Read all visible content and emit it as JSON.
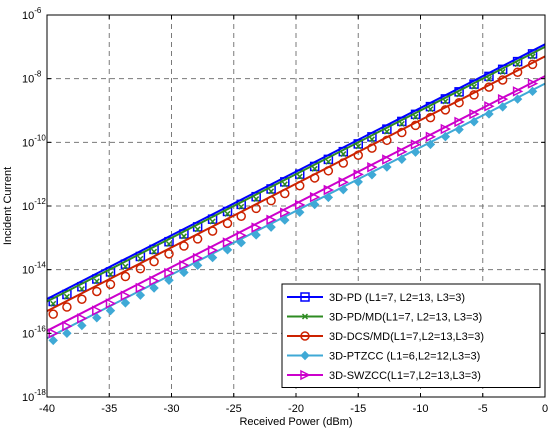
{
  "chart_data": {
    "type": "line",
    "xlabel": "Received Power (dBm)",
    "ylabel": "Incident Current",
    "x_scale": "linear",
    "y_scale": "log",
    "xlim": [
      -40,
      0
    ],
    "ylim": [
      1e-18,
      1e-06
    ],
    "grid": true,
    "legend_position": "bottom-right",
    "x_ticks": [
      -40,
      -35,
      -30,
      -25,
      -20,
      -15,
      -10,
      -5,
      0
    ],
    "x_tick_labels": [
      "-40",
      "-35",
      "-30",
      "-25",
      "-20",
      "-15",
      "-10",
      "-5",
      "0"
    ],
    "y_ticks": [
      1e-18,
      1e-16,
      1e-14,
      1e-12,
      1e-10,
      1e-08,
      1e-06
    ],
    "y_tick_labels": [
      {
        "base": "10",
        "exp": "-18"
      },
      {
        "base": "10",
        "exp": "-16"
      },
      {
        "base": "10",
        "exp": "-14"
      },
      {
        "base": "10",
        "exp": "-12"
      },
      {
        "base": "10",
        "exp": "-10"
      },
      {
        "base": "10",
        "exp": "-8"
      },
      {
        "base": "10",
        "exp": "-6"
      }
    ],
    "x": [
      -40,
      -39,
      -38,
      -37,
      -36,
      -35,
      -34,
      -33,
      -32,
      -31,
      -30,
      -29,
      -28,
      -27,
      -26,
      -25,
      -24,
      -23,
      -22,
      -21,
      -20,
      -19,
      -18,
      -17,
      -16,
      -15,
      -14,
      -13,
      -12,
      -11,
      -10,
      -9,
      -8,
      -7,
      -6,
      -5,
      -4,
      -3,
      -2,
      -1,
      0
    ],
    "series": [
      {
        "name": "3D-PD (L1=7, L2=13, L3=3)",
        "color": "#0000ff",
        "marker": "square",
        "line_start": 1.2e-15,
        "line_end": 1.2e-07,
        "marker_x": [
          -39.5,
          -38.4,
          -37.2,
          -36.0,
          -34.9,
          -33.7,
          -32.5,
          -31.4,
          -30.2,
          -29.0,
          -27.9,
          -26.7,
          -25.5,
          -24.4,
          -23.2,
          -22.0,
          -20.9,
          -19.7,
          -18.5,
          -17.4,
          -16.2,
          -15.0,
          -13.9,
          -12.7,
          -11.5,
          -10.4,
          -9.2,
          -8.0,
          -6.9,
          -5.7,
          -4.5,
          -3.4,
          -2.2,
          -1.0
        ],
        "marker_y_start": 1e-15,
        "marker_y_end": 6e-08
      },
      {
        "name": "3D-PD/MD(L1=7, L2=13, L3=3)",
        "color": "#2e8b22",
        "marker": "x",
        "line_start": 1e-15,
        "line_end": 1e-07,
        "marker_x": [
          -39.5,
          -38.4,
          -37.2,
          -36.0,
          -34.9,
          -33.7,
          -32.5,
          -31.4,
          -30.2,
          -29.0,
          -27.9,
          -26.7,
          -25.5,
          -24.4,
          -23.2,
          -22.0,
          -20.9,
          -19.7,
          -18.5,
          -17.4,
          -16.2,
          -15.0,
          -13.9,
          -12.7,
          -11.5,
          -10.4,
          -9.2,
          -8.0,
          -6.9,
          -5.7,
          -4.5,
          -3.4,
          -2.2,
          -1.0
        ],
        "marker_y_start": 8.5e-16,
        "marker_y_end": 5e-08
      },
      {
        "name": "3D-DCS/MD(L1=7,L2=13,L3=3)",
        "color": "#cc2200",
        "marker": "circle",
        "line_start": 5e-16,
        "line_end": 5e-08,
        "marker_x": [
          -39.5,
          -38.4,
          -37.2,
          -36.0,
          -34.9,
          -33.7,
          -32.5,
          -31.4,
          -30.2,
          -29.0,
          -27.9,
          -26.7,
          -25.5,
          -24.4,
          -23.2,
          -22.0,
          -20.9,
          -19.7,
          -18.5,
          -17.4,
          -16.2,
          -15.0,
          -13.9,
          -12.7,
          -11.5,
          -10.4,
          -9.2,
          -8.0,
          -6.9,
          -5.7,
          -4.5,
          -3.4,
          -2.2,
          -1.0
        ],
        "marker_y_start": 4e-16,
        "marker_y_end": 2.8e-08
      },
      {
        "name": "3D-PTZCC (L1=6,L2=12,L3=3)",
        "color": "#3fa9d6",
        "marker": "diamond",
        "line_start": 7e-17,
        "line_end": 7e-09,
        "marker_x": [
          -39.5,
          -38.4,
          -37.2,
          -36.0,
          -34.9,
          -33.7,
          -32.5,
          -31.4,
          -30.2,
          -29.0,
          -27.9,
          -26.7,
          -25.5,
          -24.4,
          -23.2,
          -22.0,
          -20.9,
          -19.7,
          -18.5,
          -17.4,
          -16.2,
          -15.0,
          -13.9,
          -12.7,
          -11.5,
          -10.4,
          -9.2,
          -8.0,
          -6.9,
          -5.7,
          -4.5,
          -3.4,
          -2.2,
          -1.0
        ],
        "marker_y_start": 6e-17,
        "marker_y_end": 4e-09
      },
      {
        "name": "3D-SWZCC(L1=7,L2=13,L3=3)",
        "color": "#cc00cc",
        "marker": "triangle-right",
        "line_start": 1.2e-16,
        "line_end": 1.2e-08,
        "marker_x": [
          -39.5,
          -38.4,
          -37.2,
          -36.0,
          -34.9,
          -33.7,
          -32.5,
          -31.4,
          -30.2,
          -29.0,
          -27.9,
          -26.7,
          -25.5,
          -24.4,
          -23.2,
          -22.0,
          -20.9,
          -19.7,
          -18.5,
          -17.4,
          -16.2,
          -15.0,
          -13.9,
          -12.7,
          -11.5,
          -10.4,
          -9.2,
          -8.0,
          -6.9,
          -5.7,
          -4.5,
          -3.4,
          -2.2,
          -1.0
        ],
        "marker_y_start": 1e-16,
        "marker_y_end": 7e-09
      }
    ]
  }
}
